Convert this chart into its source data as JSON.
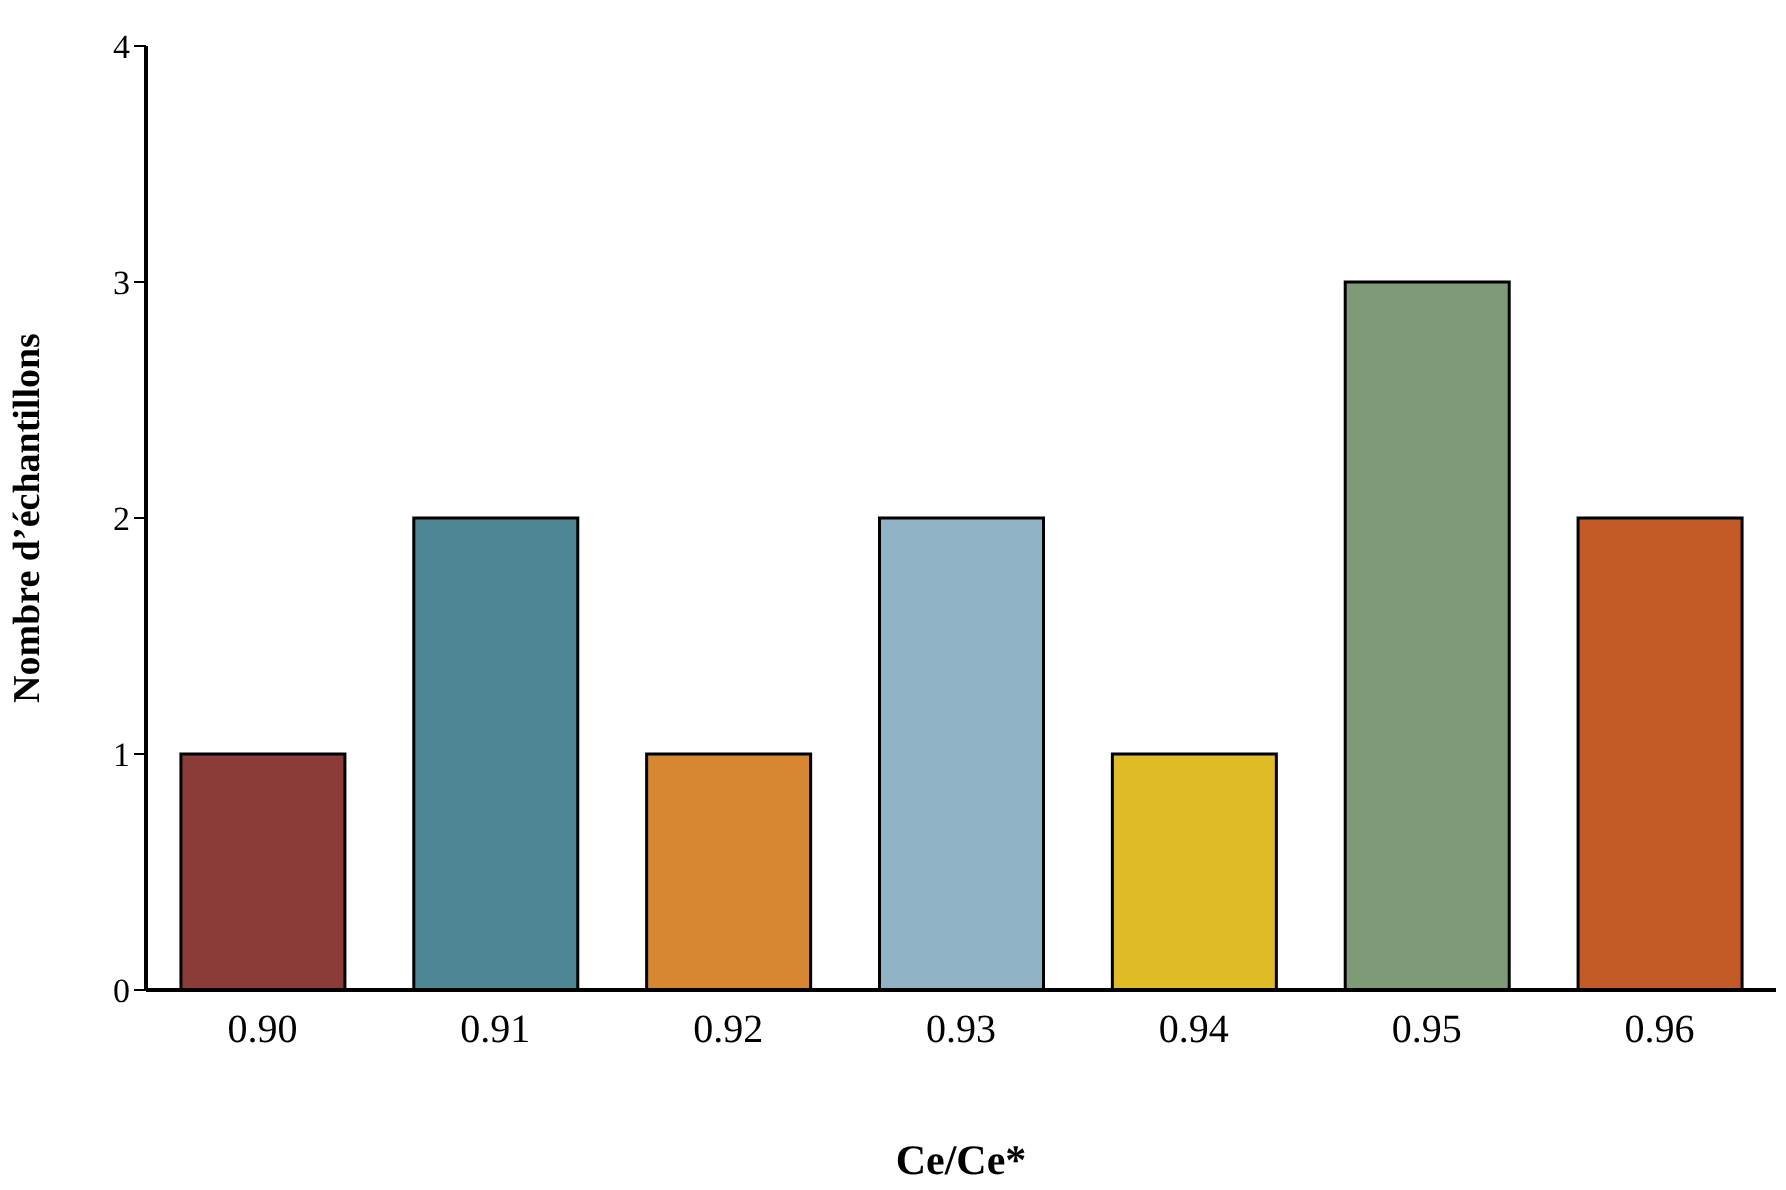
{
  "chart_data": {
    "type": "bar",
    "xlabel": "Ce/Ce*",
    "ylabel": "Nombre d’échantillons",
    "categories": [
      "0.90",
      "0.91",
      "0.92",
      "0.93",
      "0.94",
      "0.95",
      "0.96"
    ],
    "values": [
      1,
      2,
      1,
      2,
      1,
      3,
      2
    ],
    "colors": [
      "#8b3c38",
      "#4f8693",
      "#d78632",
      "#8fb2c5",
      "#e0bb28",
      "#7f9a77",
      "#c45b27"
    ],
    "ylim": [
      0,
      4
    ],
    "yticks": [
      0,
      1,
      2,
      3,
      4
    ],
    "grid": false,
    "legend": false
  }
}
